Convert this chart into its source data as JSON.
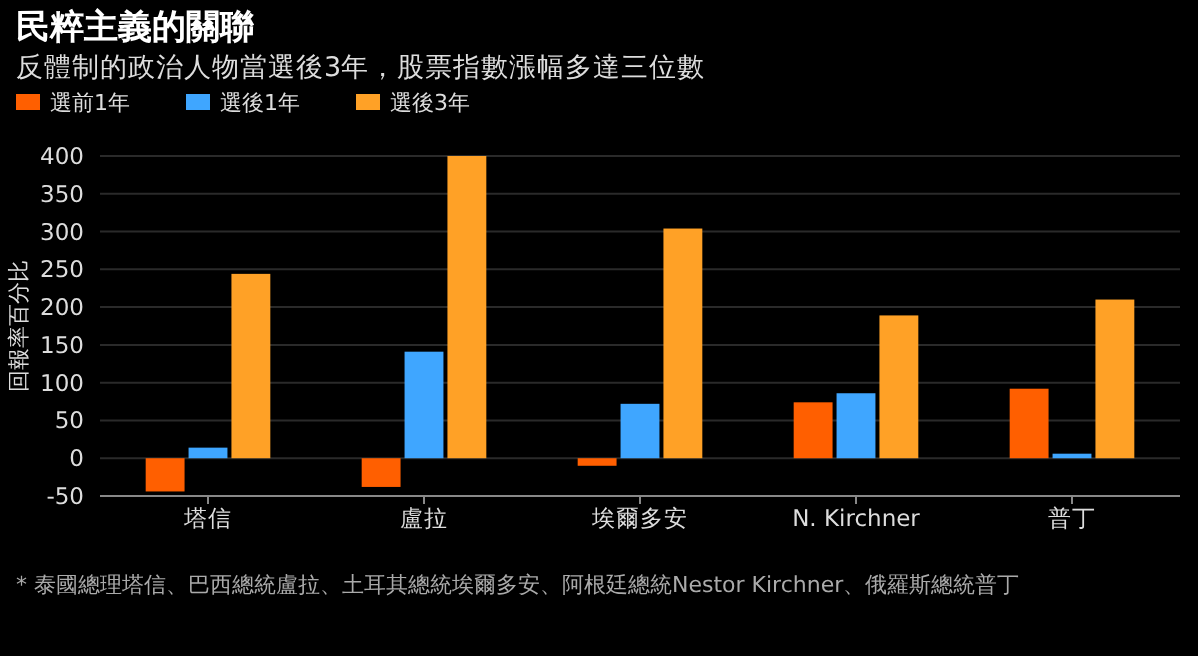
{
  "chart_data": {
    "type": "bar",
    "title": "民粹主義的關聯",
    "subtitle": "反體制的政治人物當選後3年，股票指數漲幅多達三位數",
    "ylabel": "回報率百分比",
    "categories": [
      "塔信",
      "盧拉",
      "埃爾多安",
      "N. Kirchner",
      "普丁"
    ],
    "series": [
      {
        "name": "選前1年",
        "color": "#ff5f00",
        "values": [
          -44,
          -38,
          -10,
          74,
          92
        ]
      },
      {
        "name": "選後1年",
        "color": "#3fa6ff",
        "values": [
          14,
          141,
          72,
          86,
          6
        ]
      },
      {
        "name": "選後3年",
        "color": "#ffa126",
        "values": [
          244,
          400,
          304,
          189,
          210
        ]
      }
    ],
    "ylim": [
      -50,
      400
    ],
    "yticks": [
      -50,
      0,
      50,
      100,
      150,
      200,
      250,
      300,
      350,
      400
    ],
    "grid": "y",
    "legend": "top left",
    "annotations": [
      "* 泰國總理塔信、巴西總統盧拉、土耳其總統埃爾多安、阿根廷總統Nestor Kirchner、俄羅斯總統普丁"
    ]
  }
}
